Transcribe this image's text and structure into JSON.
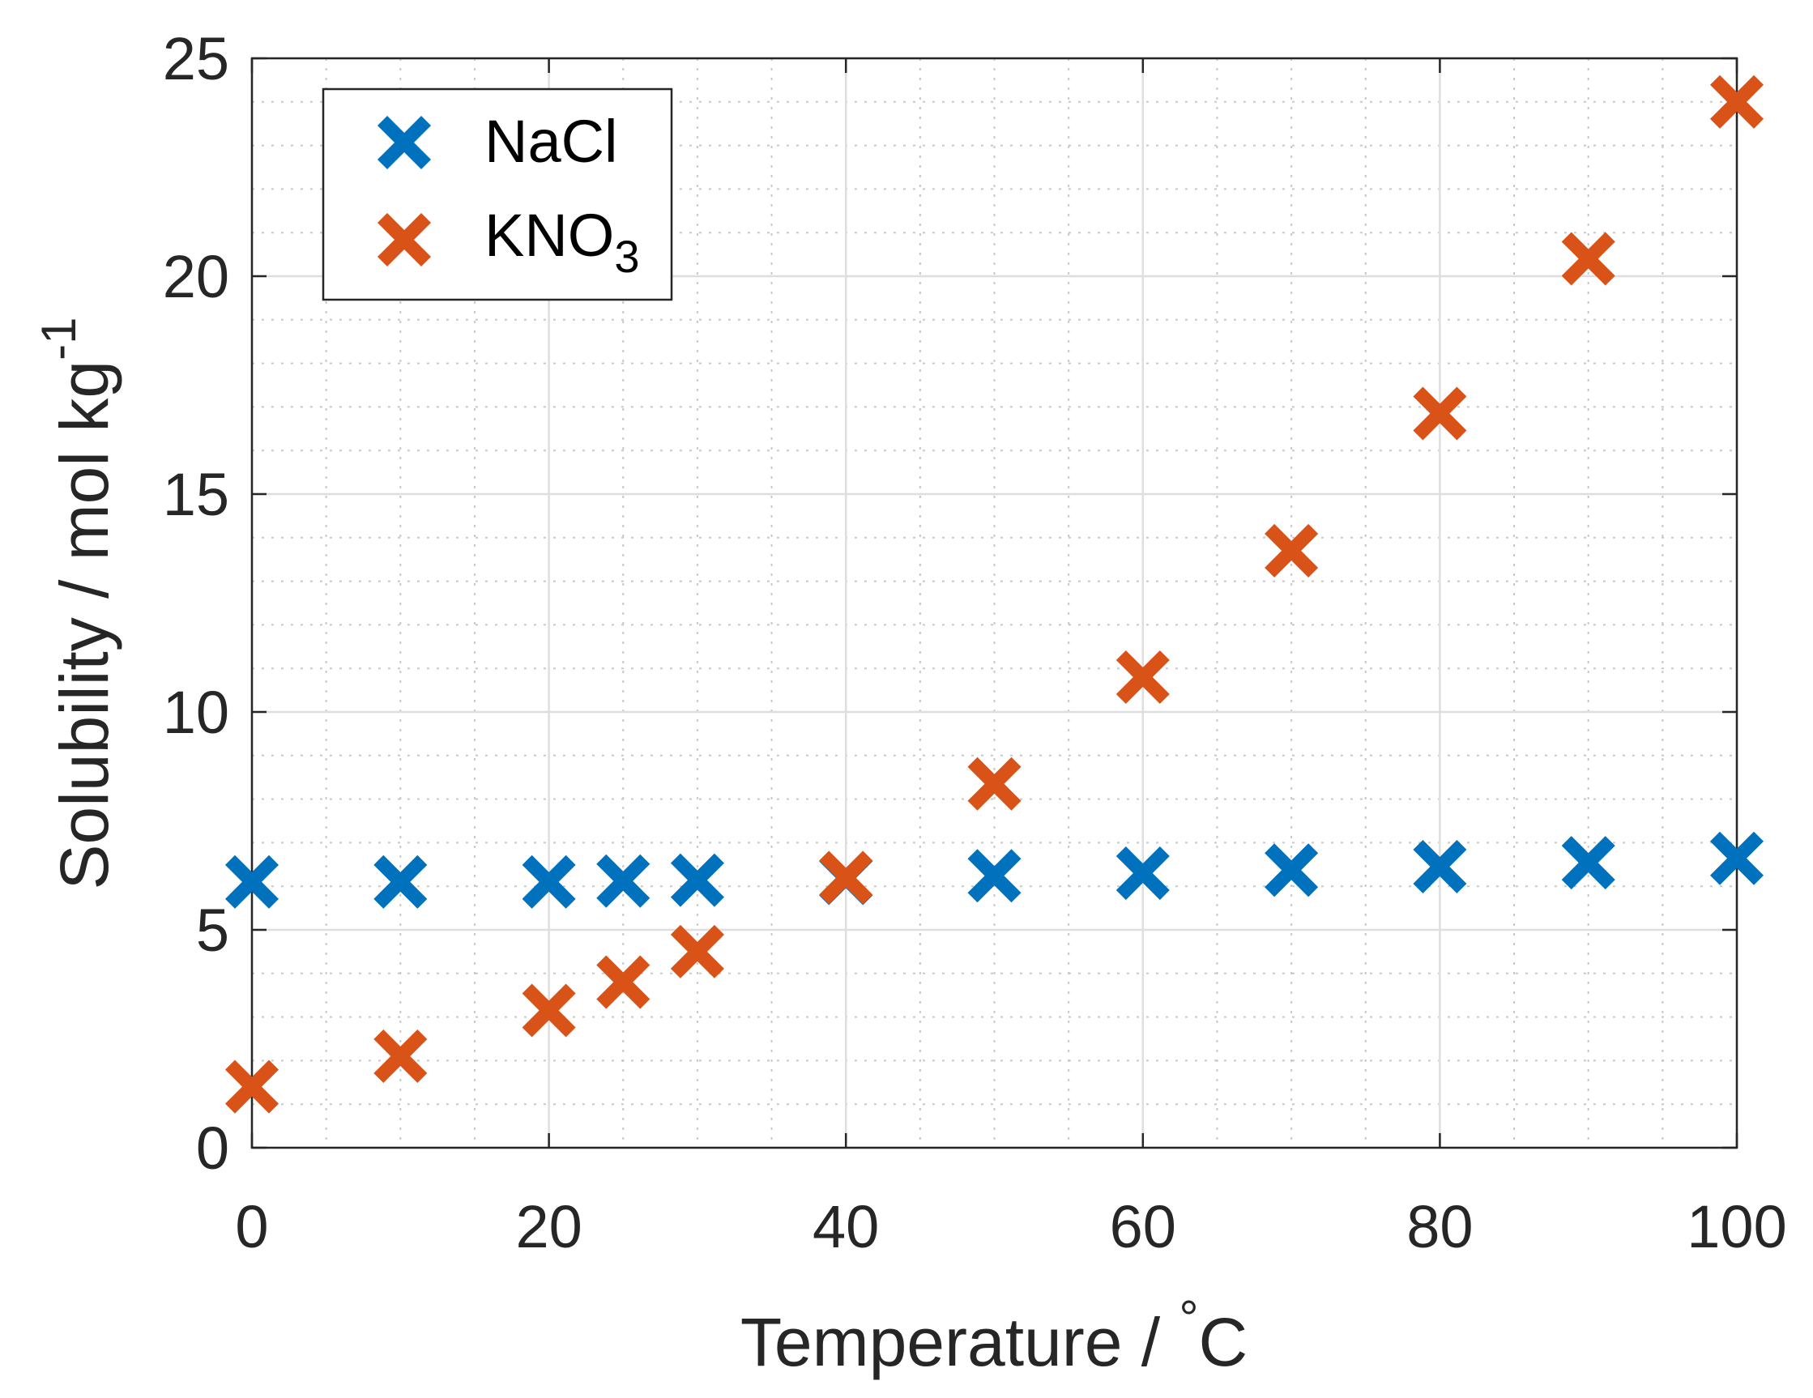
{
  "chart_data": {
    "type": "scatter",
    "title": "",
    "xlabel": "Temperature / °C",
    "xlabel_parts": {
      "main": "Temperature / ",
      "degree": "°",
      "unit": "C"
    },
    "ylabel": "Solubility / mol kg-1",
    "ylabel_parts": {
      "main": "Solubility / mol kg",
      "superscript": "-1"
    },
    "xlim": [
      0,
      100
    ],
    "ylim": [
      0,
      25
    ],
    "xticks": [
      0,
      20,
      40,
      60,
      80,
      100
    ],
    "yticks": [
      0,
      5,
      10,
      15,
      20,
      25
    ],
    "xtick_labels": [
      "0",
      "20",
      "40",
      "60",
      "80",
      "100"
    ],
    "ytick_labels": [
      "0",
      "5",
      "10",
      "15",
      "20",
      "25"
    ],
    "x_minor_step": 5,
    "y_minor_step": 1,
    "grid": true,
    "minor_grid": true,
    "legend_position": "top-left",
    "series": [
      {
        "name": "NaCl",
        "legend_main": "NaCl",
        "legend_sub": "",
        "color": "#0072BD",
        "marker": "x",
        "x": [
          0,
          10,
          20,
          25,
          30,
          40,
          50,
          60,
          70,
          80,
          90,
          100
        ],
        "y": [
          6.1,
          6.1,
          6.1,
          6.12,
          6.14,
          6.18,
          6.24,
          6.3,
          6.37,
          6.45,
          6.54,
          6.64
        ]
      },
      {
        "name": "KNO3",
        "legend_main": "KNO",
        "legend_sub": "3",
        "color": "#D95319",
        "marker": "x",
        "x": [
          0,
          10,
          20,
          25,
          30,
          40,
          50,
          60,
          70,
          80,
          90,
          100
        ],
        "y": [
          1.4,
          2.1,
          3.15,
          3.8,
          4.5,
          6.2,
          8.35,
          10.8,
          13.7,
          16.85,
          20.4,
          24.0
        ]
      }
    ]
  }
}
